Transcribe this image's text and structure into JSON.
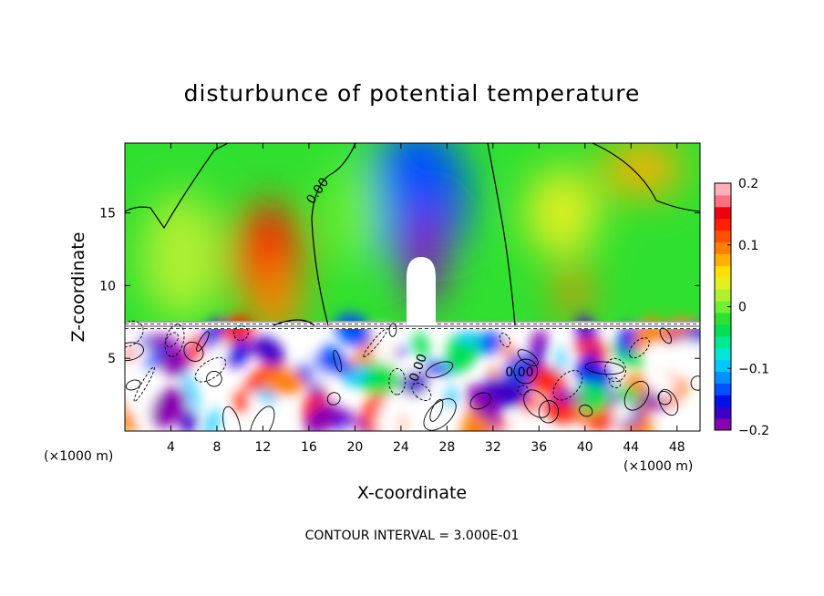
{
  "chart_data": {
    "type": "heatmap",
    "title": "disturbunce of potential temperature",
    "xlabel": "X-coordinate",
    "ylabel": "Z-coordinate",
    "x_unit": "(×1000 m)",
    "x_unit_right": "(×1000 m)",
    "xlim": [
      0,
      50
    ],
    "ylim": [
      0,
      19.8
    ],
    "x_ticks": [
      "4",
      "8",
      "12",
      "16",
      "20",
      "24",
      "28",
      "32",
      "36",
      "40",
      "44",
      "48"
    ],
    "x_tick_values": [
      4,
      8,
      12,
      16,
      20,
      24,
      28,
      32,
      36,
      40,
      44,
      48
    ],
    "y_ticks": [
      "5",
      "10",
      "15"
    ],
    "y_tick_values": [
      5,
      10,
      15
    ],
    "colorbar": {
      "range": [
        -0.2,
        0.2
      ],
      "tick_labels": [
        "0.2",
        "0.1",
        "0",
        "−0.1",
        "−0.2"
      ],
      "tick_values": [
        0.2,
        0.1,
        0,
        -0.1,
        -0.2
      ],
      "colors": [
        "#8a00b0",
        "#3a00c8",
        "#0010e8",
        "#0050ff",
        "#0090ff",
        "#00c8ff",
        "#00e8d0",
        "#00e890",
        "#00e050",
        "#30e030",
        "#70f030",
        "#b0f030",
        "#e0f020",
        "#ffe000",
        "#ffb000",
        "#ff8000",
        "#ff5000",
        "#ff2000",
        "#ee0010",
        "#ff7080",
        "#ffb0b8"
      ]
    },
    "contour_label": "0.00",
    "annotation": "CONTOUR INTERVAL = 3.000E-01",
    "features": [
      {
        "x": 25.5,
        "z": 16,
        "value": -0.13
      },
      {
        "x": 26,
        "z": 12,
        "value": -0.2
      },
      {
        "x": 12.5,
        "z": 12,
        "value": 0.14
      },
      {
        "x": 13,
        "z": 9,
        "value": 0.09
      },
      {
        "x": 39,
        "z": 9.5,
        "value": 0.1
      },
      {
        "x": 45,
        "z": 18,
        "value": 0.08
      },
      {
        "x": 38,
        "z": 15,
        "value": 0.03
      },
      {
        "x": 5,
        "z": 12,
        "value": 0.02
      },
      {
        "x": 20,
        "z": 15,
        "value": 0.0
      }
    ]
  }
}
